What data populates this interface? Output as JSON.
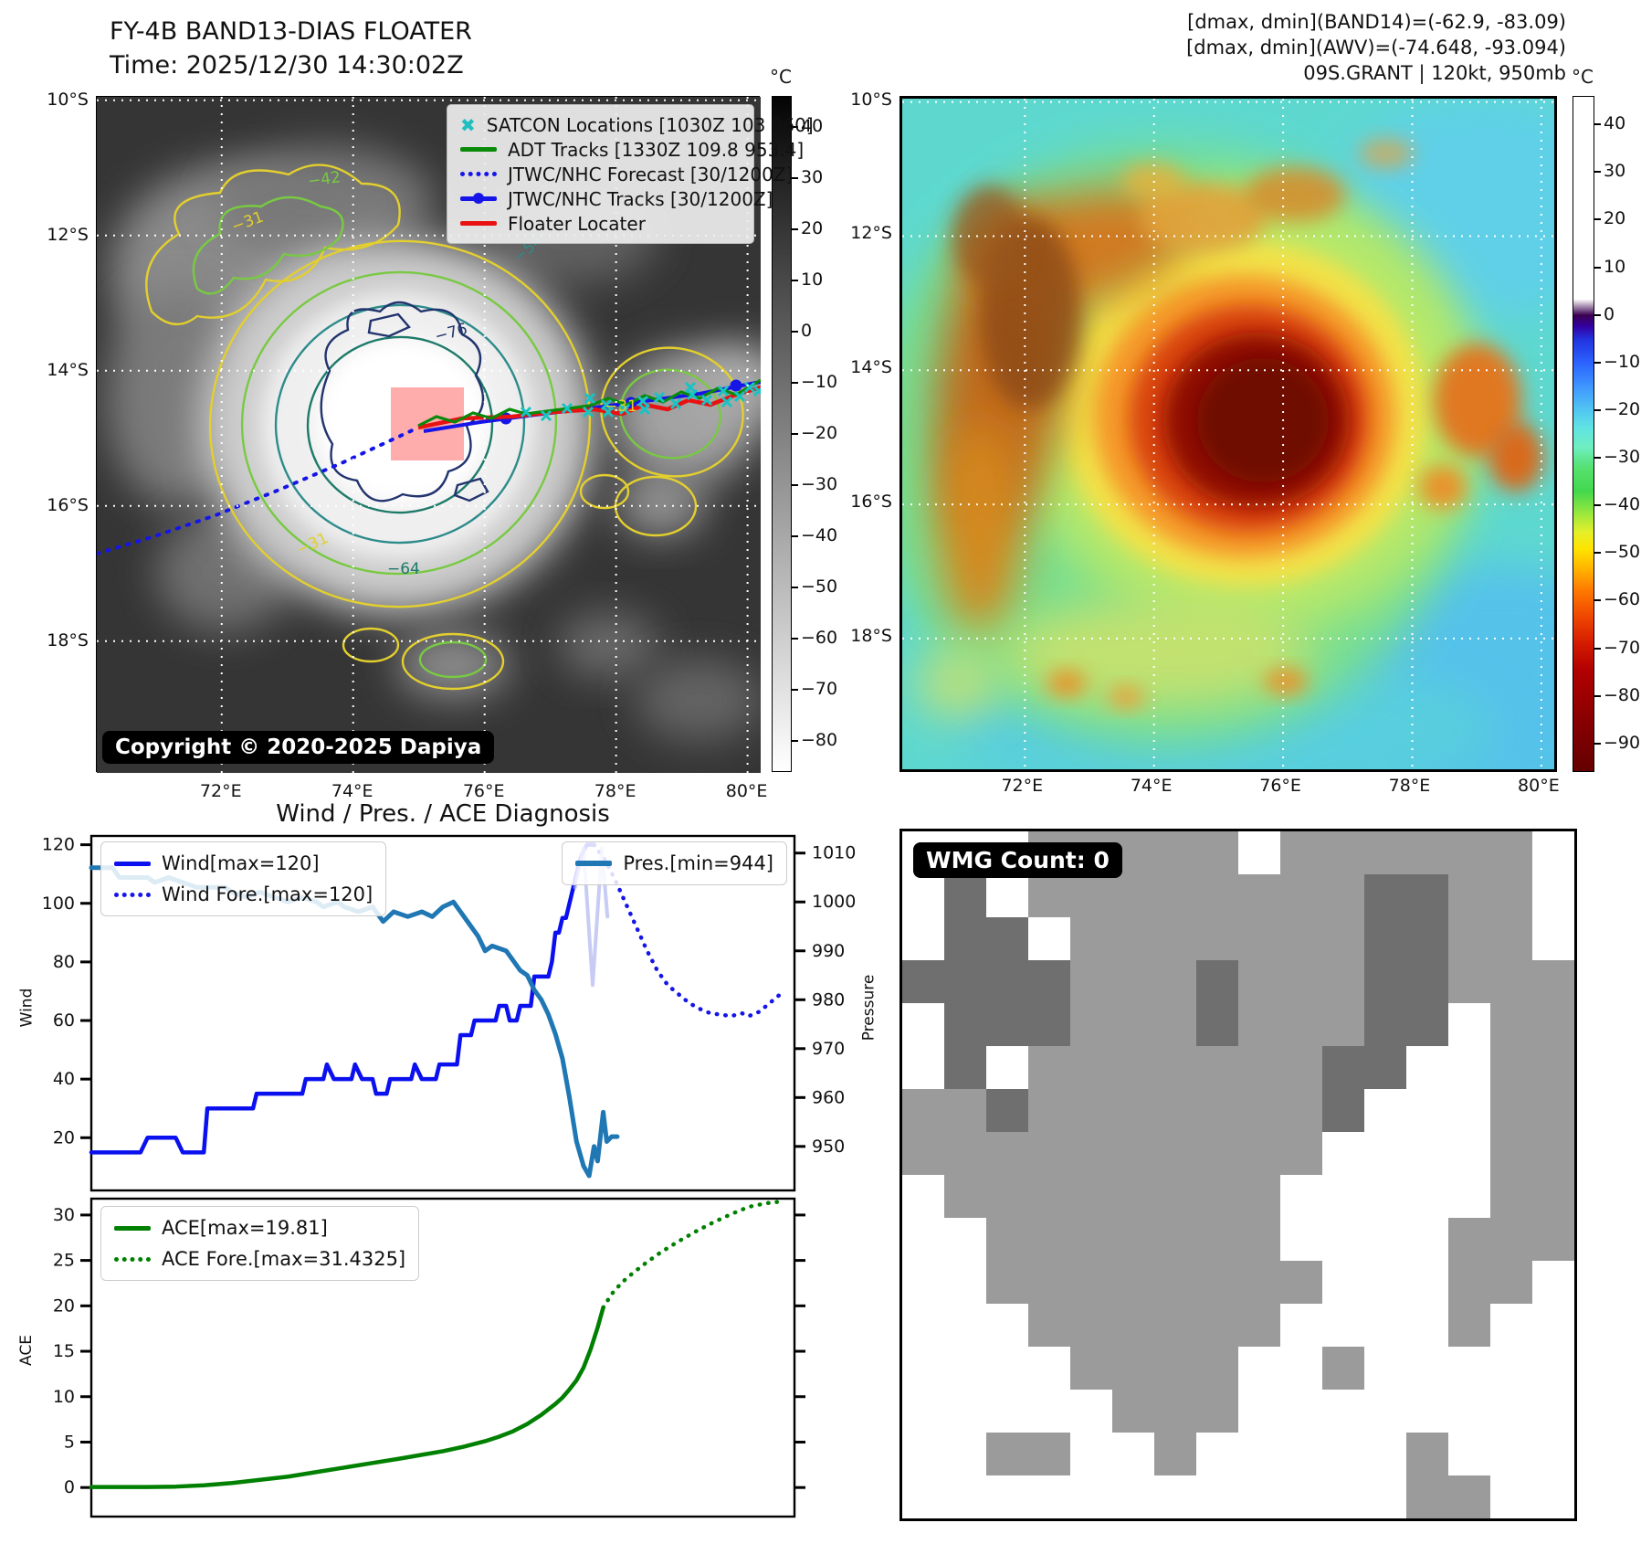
{
  "left_map": {
    "title_line1": "FY-4B BAND13-DIAS FLOATER",
    "title_line2": "Time: 2025/12/30 14:30:02Z",
    "copyright": "Copyright © 2020-2025 Dapiya",
    "legend": [
      {
        "label": "SATCON Locations [1030Z 103 960]",
        "marker": "x",
        "color": "#1fbfbf"
      },
      {
        "label": "ADT Tracks [1330Z 109.8 953.4]",
        "marker": "line",
        "color": "#0a8a0a"
      },
      {
        "label": "JTWC/NHC Forecast [30/1200Z]",
        "marker": "dotted",
        "color": "#1515e8"
      },
      {
        "label": "JTWC/NHC Tracks [30/1200Z]",
        "marker": "linedot",
        "color": "#1515e8"
      },
      {
        "label": "Floater Locater",
        "marker": "line",
        "color": "#e81212"
      }
    ],
    "colorbar": {
      "unit": "°C",
      "ticks": [
        40,
        30,
        20,
        10,
        0,
        -10,
        -20,
        -30,
        -40,
        -50,
        -60,
        -70,
        -80
      ],
      "vmin": -86,
      "vmax": 46
    },
    "x_tick_labels": [
      "72°E",
      "74°E",
      "76°E",
      "78°E",
      "80°E"
    ],
    "y_tick_labels": [
      "10°S",
      "12°S",
      "14°S",
      "16°S",
      "18°S"
    ],
    "grid_lons": [
      72,
      74,
      76,
      78,
      80
    ],
    "grid_lats": [
      10,
      12,
      14,
      16,
      18
    ],
    "contour_labels": [
      {
        "text": "-31",
        "color": "#e3cf2e"
      },
      {
        "text": "-42",
        "color": "#79c943"
      },
      {
        "text": "-54",
        "color": "#2e8b8b"
      },
      {
        "text": "-76",
        "color": "#22346e"
      },
      {
        "text": "-64",
        "color": "#1d7a6a"
      },
      {
        "text": "-31",
        "color": "#e3cf2e"
      },
      {
        "text": "-31",
        "color": "#e3cf2e"
      }
    ]
  },
  "right_map": {
    "annotation_line1": "[dmax, dmin](BAND14)=(-62.9, -83.09)",
    "annotation_line2": "[dmax, dmin](AWV)=(-74.648, -93.094)",
    "annotation_line3": "09S.GRANT | 120kt, 950mb",
    "colorbar": {
      "unit": "°C",
      "ticks": [
        40,
        30,
        20,
        10,
        0,
        -10,
        -20,
        -30,
        -40,
        -50,
        -60,
        -70,
        -80,
        -90
      ],
      "vmin": -96,
      "vmax": 46
    },
    "x_tick_labels": [
      "72°E",
      "74°E",
      "76°E",
      "78°E",
      "80°E"
    ],
    "y_tick_labels": [
      "10°S",
      "12°S",
      "14°S",
      "16°S",
      "18°S"
    ],
    "grid_lons": [
      72,
      74,
      76,
      78,
      80
    ],
    "grid_lats": [
      10,
      12,
      14,
      16,
      18
    ]
  },
  "charts": {
    "title": "Wind / Pres. / ACE Diagnosis",
    "wind_axis_label": "Wind",
    "pressure_axis_label": "Pressure",
    "ace_axis_label": "ACE",
    "legend_wind": "Wind[max=120]",
    "legend_wind_fore": "Wind Fore.[max=120]",
    "legend_pres": "Pres.[min=944]",
    "legend_ace": "ACE[max=19.81]",
    "legend_ace_fore": "ACE Fore.[max=31.4325]"
  },
  "wmg": {
    "label": "WMG Count: 0",
    "grid_rows": [
      "...LLLLL.LLLLLL.",
      ".D.LLLLLLLLDDLL.",
      ".DD.LLLLLLLDDLL.",
      "DDDDLLLDLLLDDLLL",
      ".DDDLLLDLLLDD.LL",
      ".D.LLLLLLLDD..LL",
      "LLDLLLLLLLD...LL",
      "LLLLLLLLLL....LL",
      ".LLLLLLLL.....LL",
      "..LLLLLLL....LLL",
      "..LLLLLLLL...LL.",
      "...LLLLLL....L..",
      "....LLLL..L.....",
      ".....LLL........",
      "..LL..L.....L...",
      "............LL.."
    ]
  },
  "chart_data": [
    {
      "type": "line",
      "title": "Wind / Pres. / ACE Diagnosis (upper panel)",
      "ylabel": "Wind",
      "y2label": "Pressure",
      "xlim": [
        0,
        100
      ],
      "ylim": [
        2,
        123
      ],
      "y2lim": [
        941,
        1013.5
      ],
      "yticks": [
        20,
        40,
        60,
        80,
        100,
        120
      ],
      "y2ticks": [
        950,
        960,
        970,
        980,
        990,
        1000,
        1010
      ],
      "legend_position": "upper left / upper right",
      "series": [
        {
          "name": "Wind[max=120]",
          "axis": "y",
          "style": "solid",
          "color": "#0a10ee",
          "width": 4.5,
          "points": [
            [
              0,
              15
            ],
            [
              7,
              15
            ],
            [
              8,
              20
            ],
            [
              12,
              20
            ],
            [
              13,
              15
            ],
            [
              16,
              15
            ],
            [
              16.5,
              30
            ],
            [
              23,
              30
            ],
            [
              23.5,
              35
            ],
            [
              30,
              35
            ],
            [
              30.5,
              40
            ],
            [
              33,
              40
            ],
            [
              33.5,
              45
            ],
            [
              34.5,
              40
            ],
            [
              37,
              40
            ],
            [
              37.5,
              45
            ],
            [
              38.5,
              40
            ],
            [
              40,
              40
            ],
            [
              40.5,
              35
            ],
            [
              42,
              35
            ],
            [
              42.5,
              40
            ],
            [
              45.5,
              40
            ],
            [
              46,
              45
            ],
            [
              47,
              40
            ],
            [
              49,
              40
            ],
            [
              49.5,
              45
            ],
            [
              52,
              45
            ],
            [
              52.5,
              55
            ],
            [
              54,
              55
            ],
            [
              54.5,
              60
            ],
            [
              57.5,
              60
            ],
            [
              58,
              65
            ],
            [
              59,
              65
            ],
            [
              59.5,
              60
            ],
            [
              60.5,
              60
            ],
            [
              61,
              65
            ],
            [
              62.5,
              65
            ],
            [
              63,
              75
            ],
            [
              65,
              75
            ],
            [
              65.5,
              80
            ],
            [
              66,
              90
            ],
            [
              66.5,
              90
            ],
            [
              67,
              95
            ],
            [
              67.5,
              95
            ],
            [
              68,
              100
            ],
            [
              68.5,
              105
            ],
            [
              69,
              110
            ],
            [
              69.5,
              115
            ],
            [
              70,
              118
            ],
            [
              70.5,
              120
            ],
            [
              71.5,
              120
            ]
          ]
        },
        {
          "name": "Wind Fore.[max=120]",
          "axis": "y",
          "style": "dotted",
          "color": "#1515e8",
          "width": 4.5,
          "points": [
            [
              71.5,
              120
            ],
            [
              73,
              115
            ],
            [
              74.5,
              108
            ],
            [
              76,
              100
            ],
            [
              77.5,
              92
            ],
            [
              79,
              84
            ],
            [
              80.5,
              77
            ],
            [
              82,
              72
            ],
            [
              83.5,
              69
            ],
            [
              85,
              66
            ],
            [
              86.5,
              64
            ],
            [
              88,
              62.5
            ],
            [
              89.5,
              62
            ],
            [
              91,
              61.5
            ],
            [
              92.5,
              62.5
            ],
            [
              93.5,
              61.5
            ],
            [
              95,
              63
            ],
            [
              96.5,
              66
            ],
            [
              98,
              69
            ]
          ]
        },
        {
          "name": "Pres.[min=944]",
          "axis": "y2",
          "style": "solid",
          "color": "#1f77b4",
          "width": 5,
          "points": [
            [
              0,
              1007
            ],
            [
              3,
              1007
            ],
            [
              4,
              1005
            ],
            [
              8,
              1005
            ],
            [
              9,
              1004
            ],
            [
              11,
              1005
            ],
            [
              13,
              1004
            ],
            [
              15,
              1003
            ],
            [
              19,
              1003
            ],
            [
              20,
              1002
            ],
            [
              22,
              1001
            ],
            [
              24,
              1002
            ],
            [
              26,
              1001
            ],
            [
              28,
              1000
            ],
            [
              30,
              1001
            ],
            [
              32,
              1000
            ],
            [
              33,
              999
            ],
            [
              35,
              1000
            ],
            [
              36,
              999
            ],
            [
              38,
              998
            ],
            [
              40,
              999
            ],
            [
              41.5,
              996
            ],
            [
              43,
              998
            ],
            [
              45,
              997
            ],
            [
              47,
              998
            ],
            [
              48.5,
              997
            ],
            [
              50,
              999
            ],
            [
              51.5,
              1000
            ],
            [
              52.5,
              998
            ],
            [
              54,
              995
            ],
            [
              55,
              993
            ],
            [
              56,
              990
            ],
            [
              57,
              991
            ],
            [
              59,
              990
            ],
            [
              60,
              988
            ],
            [
              61,
              986
            ],
            [
              62,
              985
            ],
            [
              63,
              982
            ],
            [
              64,
              980
            ],
            [
              65,
              977
            ],
            [
              66,
              973
            ],
            [
              67,
              968
            ],
            [
              68,
              960
            ],
            [
              69,
              951
            ],
            [
              70,
              946
            ],
            [
              70.8,
              944
            ],
            [
              71.5,
              950
            ],
            [
              72,
              947
            ],
            [
              72.8,
              957
            ],
            [
              73.3,
              951
            ],
            [
              74,
              952
            ],
            [
              74.8,
              952
            ]
          ]
        },
        {
          "name": "pressure-forecast-partial",
          "axis": "y2",
          "style": "solid",
          "color": "#aab0ee",
          "width": 4,
          "opacity": 0.65,
          "points": [
            [
              68.8,
              1003
            ],
            [
              70,
              1011
            ],
            [
              71.3,
              983
            ],
            [
              72.6,
              1011
            ],
            [
              73.4,
              997
            ]
          ]
        }
      ]
    },
    {
      "type": "line",
      "title": "Wind / Pres. / ACE Diagnosis (lower panel)",
      "ylabel": "ACE",
      "xlim": [
        0,
        100
      ],
      "ylim": [
        -3.2,
        31.8
      ],
      "yticks": [
        0,
        5,
        10,
        15,
        20,
        25,
        30
      ],
      "legend_position": "upper left",
      "series": [
        {
          "name": "ACE[max=19.81]",
          "axis": "y",
          "style": "solid",
          "color": "#008000",
          "width": 4.5,
          "points": [
            [
              0,
              0.05
            ],
            [
              8,
              0.05
            ],
            [
              12,
              0.1
            ],
            [
              16,
              0.25
            ],
            [
              20,
              0.5
            ],
            [
              24,
              0.85
            ],
            [
              28,
              1.2
            ],
            [
              32,
              1.7
            ],
            [
              36,
              2.2
            ],
            [
              40,
              2.7
            ],
            [
              44,
              3.2
            ],
            [
              47,
              3.6
            ],
            [
              50,
              4.0
            ],
            [
              53,
              4.5
            ],
            [
              56,
              5.1
            ],
            [
              58,
              5.6
            ],
            [
              60,
              6.2
            ],
            [
              62,
              7.0
            ],
            [
              64,
              8.0
            ],
            [
              66,
              9.2
            ],
            [
              67,
              9.9
            ],
            [
              68,
              10.8
            ],
            [
              69,
              11.8
            ],
            [
              70,
              13.2
            ],
            [
              71,
              15.2
            ],
            [
              72,
              17.6
            ],
            [
              72.8,
              19.81
            ]
          ]
        },
        {
          "name": "ACE Fore.[max=31.4325]",
          "axis": "y",
          "style": "dotted",
          "color": "#008000",
          "width": 4.5,
          "points": [
            [
              72.8,
              19.81
            ],
            [
              74,
              21.3
            ],
            [
              75.5,
              22.6
            ],
            [
              77,
              23.6
            ],
            [
              79,
              24.8
            ],
            [
              81,
              25.9
            ],
            [
              83.5,
              27.1
            ],
            [
              86,
              28.2
            ],
            [
              88.5,
              29.2
            ],
            [
              91,
              30.1
            ],
            [
              93.5,
              30.9
            ],
            [
              96,
              31.3
            ],
            [
              97.5,
              31.43
            ]
          ]
        }
      ]
    }
  ]
}
